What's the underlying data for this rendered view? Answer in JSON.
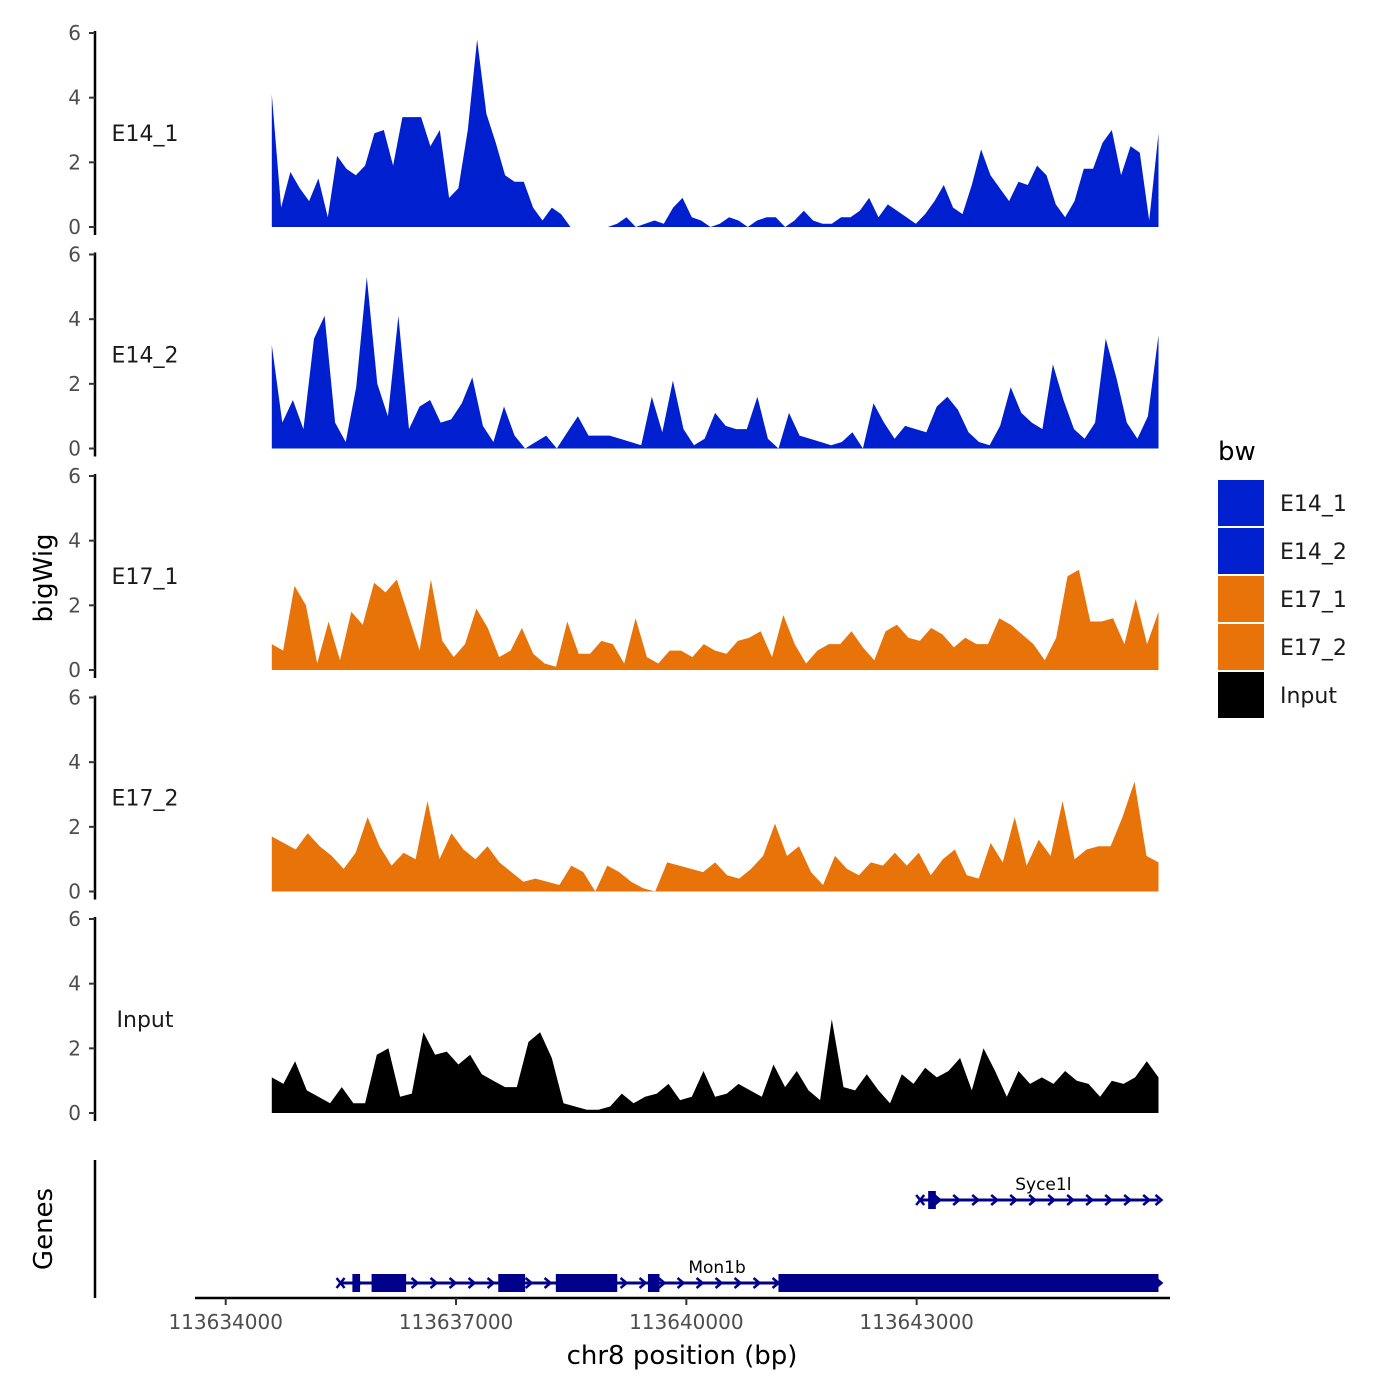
{
  "chart_data": {
    "type": "area",
    "ylabel": "bigWig",
    "xlabel": "chr8 position (bp)",
    "ylim": [
      0,
      6
    ],
    "y_ticks": [
      "0",
      "2",
      "4",
      "6"
    ],
    "x_range": [
      113633600,
      113646300
    ],
    "data_range": [
      113634600,
      113646150
    ],
    "x_ticks": [
      {
        "value": 113634000,
        "label": "113634000"
      },
      {
        "value": 113637000,
        "label": "113637000"
      },
      {
        "value": 113640000,
        "label": "113640000"
      },
      {
        "value": 113643000,
        "label": "113643000"
      }
    ],
    "tracks": [
      {
        "name": "E14_1",
        "color": "#0020d0",
        "values": [
          4.1,
          0.6,
          1.7,
          1.2,
          0.8,
          1.5,
          0.3,
          2.2,
          1.8,
          1.6,
          1.9,
          2.9,
          3.0,
          1.9,
          3.4,
          3.4,
          3.4,
          2.5,
          3.0,
          0.9,
          1.2,
          3.0,
          5.8,
          3.5,
          2.6,
          1.6,
          1.4,
          1.4,
          0.6,
          0.2,
          0.6,
          0.4,
          0,
          0,
          0,
          0,
          0,
          0.1,
          0.3,
          0,
          0.1,
          0.2,
          0.1,
          0.6,
          0.9,
          0.3,
          0.2,
          0,
          0.1,
          0.3,
          0.2,
          0,
          0.2,
          0.3,
          0.3,
          0,
          0.2,
          0.5,
          0.2,
          0.1,
          0.1,
          0.3,
          0.3,
          0.5,
          0.9,
          0.3,
          0.7,
          0.5,
          0.3,
          0.1,
          0.4,
          0.8,
          1.3,
          0.6,
          0.4,
          1.3,
          2.4,
          1.6,
          1.2,
          0.8,
          1.4,
          1.3,
          1.9,
          1.6,
          0.7,
          0.3,
          0.8,
          1.8,
          1.8,
          2.6,
          3.0,
          1.6,
          2.5,
          2.3,
          0.2,
          2.9
        ]
      },
      {
        "name": "E14_2",
        "color": "#0020d0",
        "values": [
          3.2,
          0.8,
          1.5,
          0.6,
          3.4,
          4.1,
          0.8,
          0.2,
          1.9,
          5.3,
          2.0,
          1.0,
          4.1,
          0.6,
          1.3,
          1.5,
          0.8,
          0.9,
          1.4,
          2.2,
          0.7,
          0.2,
          1.3,
          0.4,
          0,
          0.2,
          0.4,
          0,
          0.5,
          1.0,
          0.4,
          0.4,
          0.4,
          0.3,
          0.2,
          0.1,
          1.6,
          0.5,
          2.1,
          0.6,
          0.1,
          0.3,
          1.1,
          0.7,
          0.6,
          0.6,
          1.6,
          0.3,
          0,
          1.1,
          0.4,
          0.3,
          0.2,
          0.1,
          0.2,
          0.5,
          0,
          1.4,
          0.8,
          0.3,
          0.7,
          0.6,
          0.5,
          1.3,
          1.6,
          1.2,
          0.5,
          0.2,
          0.1,
          0.7,
          1.9,
          1.1,
          0.8,
          0.6,
          2.6,
          1.5,
          0.6,
          0.3,
          0.8,
          3.4,
          2.2,
          0.8,
          0.3,
          1.0,
          3.5
        ]
      },
      {
        "name": "E17_1",
        "color": "#e87308",
        "values": [
          0.8,
          0.6,
          2.6,
          2.0,
          0.2,
          1.5,
          0.3,
          1.8,
          1.4,
          2.7,
          2.4,
          2.8,
          1.7,
          0.6,
          2.8,
          0.9,
          0.4,
          0.8,
          1.9,
          1.3,
          0.4,
          0.6,
          1.3,
          0.5,
          0.2,
          0.1,
          1.5,
          0.5,
          0.5,
          0.9,
          0.8,
          0.2,
          1.6,
          0.4,
          0.2,
          0.6,
          0.6,
          0.4,
          0.8,
          0.6,
          0.5,
          0.9,
          1.0,
          1.2,
          0.4,
          1.7,
          0.8,
          0.2,
          0.6,
          0.8,
          0.8,
          1.2,
          0.7,
          0.3,
          1.2,
          1.4,
          1.0,
          0.9,
          1.3,
          1.1,
          0.7,
          1.0,
          0.8,
          0.8,
          1.6,
          1.4,
          1.1,
          0.8,
          0.3,
          1.0,
          2.9,
          3.1,
          1.5,
          1.5,
          1.6,
          0.8,
          2.2,
          0.8,
          1.8
        ]
      },
      {
        "name": "E17_2",
        "color": "#e87308",
        "values": [
          1.7,
          1.5,
          1.3,
          1.8,
          1.4,
          1.1,
          0.7,
          1.2,
          2.3,
          1.4,
          0.8,
          1.2,
          1.0,
          2.8,
          1.0,
          1.8,
          1.3,
          1.0,
          1.4,
          0.9,
          0.6,
          0.3,
          0.4,
          0.3,
          0.2,
          0.8,
          0.6,
          0,
          0.8,
          0.6,
          0.3,
          0.1,
          0,
          0.9,
          0.8,
          0.7,
          0.6,
          0.9,
          0.5,
          0.4,
          0.7,
          1.1,
          2.1,
          1.1,
          1.4,
          0.6,
          0.2,
          1.1,
          0.7,
          0.5,
          0.9,
          0.8,
          1.2,
          0.8,
          1.2,
          0.5,
          1.0,
          1.3,
          0.5,
          0.4,
          1.5,
          0.9,
          2.3,
          0.8,
          1.6,
          1.1,
          2.8,
          1.0,
          1.3,
          1.4,
          1.4,
          2.3,
          3.4,
          1.1,
          0.9
        ]
      },
      {
        "name": "Input",
        "color": "#000000",
        "values": [
          1.1,
          0.9,
          1.6,
          0.7,
          0.5,
          0.3,
          0.8,
          0.3,
          0.3,
          1.8,
          2.0,
          0.5,
          0.6,
          2.5,
          1.8,
          1.9,
          1.5,
          1.8,
          1.2,
          1.0,
          0.8,
          0.8,
          2.2,
          2.5,
          1.7,
          0.3,
          0.2,
          0.1,
          0.1,
          0.2,
          0.6,
          0.3,
          0.5,
          0.6,
          0.9,
          0.4,
          0.5,
          1.3,
          0.5,
          0.6,
          0.9,
          0.7,
          0.5,
          1.5,
          0.8,
          1.3,
          0.7,
          0.4,
          2.9,
          0.8,
          0.7,
          1.2,
          0.7,
          0.3,
          1.2,
          0.9,
          1.4,
          1.1,
          1.3,
          1.7,
          0.7,
          2.0,
          1.3,
          0.5,
          1.3,
          0.9,
          1.1,
          0.9,
          1.3,
          1.0,
          0.9,
          0.5,
          1.0,
          0.9,
          1.1,
          1.6,
          1.1
        ]
      }
    ],
    "genes": {
      "title": "Genes",
      "color": "#00008b",
      "items": [
        {
          "name": "Syce1l",
          "start": 113643150,
          "end": 113646150,
          "strand": "+",
          "exons": [
            [
              113643150,
              113643250
            ]
          ]
        },
        {
          "name": "Mon1b",
          "start": 113635600,
          "end": 113646150,
          "strand": "+",
          "exons": [
            [
              113635650,
              113635750
            ],
            [
              113635900,
              113636350
            ],
            [
              113637550,
              113637900
            ],
            [
              113638300,
              113639100
            ],
            [
              113639500,
              113639650
            ],
            [
              113641200,
              113646150
            ]
          ]
        }
      ]
    },
    "legend": {
      "title": "bw",
      "position": "right",
      "items": [
        {
          "label": "E14_1",
          "color": "#0020d0"
        },
        {
          "label": "E14_2",
          "color": "#0020d0"
        },
        {
          "label": "E17_1",
          "color": "#e87308"
        },
        {
          "label": "E17_2",
          "color": "#e87308"
        },
        {
          "label": "Input",
          "color": "#000000"
        }
      ]
    }
  }
}
